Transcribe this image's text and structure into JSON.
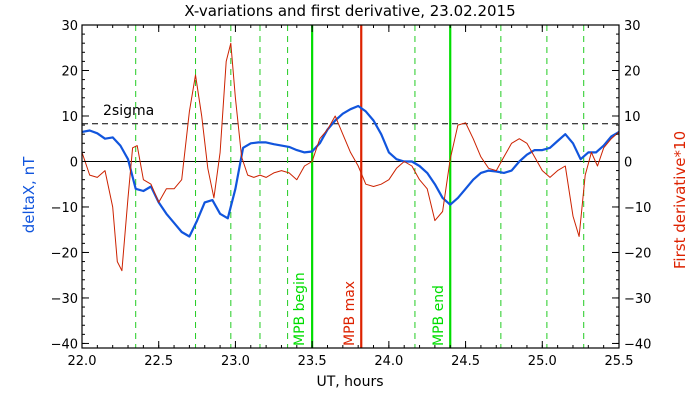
{
  "chart_data": {
    "type": "line",
    "title": "X-variations and first derivative, 23.02.2015",
    "xlabel": "UT, hours",
    "ylabel_left": "deltaX, nT",
    "ylabel_right": "First derivative*10",
    "xlim": [
      22.0,
      25.5
    ],
    "ylim": [
      -41,
      30
    ],
    "xticks": [
      22.0,
      22.5,
      23.0,
      23.5,
      24.0,
      24.5,
      25.0,
      25.5
    ],
    "xtick_labels": [
      "22.0",
      "22.5",
      "23.0",
      "23.5",
      "24.0",
      "24.5",
      "25.0",
      "25.5"
    ],
    "yticks": [
      30,
      20,
      10,
      0,
      -10,
      -20,
      -30,
      -40
    ],
    "ytick_labels": [
      "30",
      "20",
      "10",
      "0",
      "−10",
      "−20",
      "−30",
      "−40"
    ],
    "threshold": {
      "value": 8.3,
      "label": "2sigma"
    },
    "zero_line": 0,
    "green_dashed_lines": [
      22.35,
      22.74,
      22.97,
      23.16,
      23.34,
      24.17,
      24.73,
      25.03,
      25.27
    ],
    "vertical_markers": [
      {
        "x": 23.5,
        "label": "MPB begin",
        "color": "#00dd00"
      },
      {
        "x": 23.82,
        "label": "MPB max",
        "color": "#dd2200"
      },
      {
        "x": 24.4,
        "label": "MPB end",
        "color": "#00dd00"
      }
    ],
    "series": [
      {
        "axis": "left",
        "color": "#1155dd",
        "x": [
          22.0,
          22.05,
          22.1,
          22.15,
          22.2,
          22.25,
          22.3,
          22.35,
          22.4,
          22.45,
          22.5,
          22.55,
          22.6,
          22.65,
          22.7,
          22.75,
          22.8,
          22.85,
          22.9,
          22.95,
          23.0,
          23.05,
          23.1,
          23.15,
          23.2,
          23.25,
          23.3,
          23.35,
          23.4,
          23.45,
          23.5,
          23.55,
          23.6,
          23.65,
          23.7,
          23.75,
          23.8,
          23.85,
          23.9,
          23.95,
          24.0,
          24.05,
          24.1,
          24.15,
          24.2,
          24.25,
          24.3,
          24.35,
          24.4,
          24.45,
          24.5,
          24.55,
          24.6,
          24.65,
          24.7,
          24.75,
          24.8,
          24.85,
          24.9,
          24.95,
          25.0,
          25.05,
          25.1,
          25.15,
          25.2,
          25.25,
          25.3,
          25.35,
          25.4,
          25.45,
          25.5
        ],
        "values": [
          6.5,
          6.8,
          6.2,
          5.0,
          5.3,
          3.5,
          0.5,
          -6.0,
          -6.5,
          -5.5,
          -9.0,
          -11.5,
          -13.5,
          -15.5,
          -16.5,
          -13.0,
          -9.0,
          -8.5,
          -11.5,
          -12.5,
          -6.0,
          3.0,
          4.0,
          4.2,
          4.2,
          3.8,
          3.5,
          3.2,
          2.5,
          2.0,
          2.2,
          4.0,
          7.0,
          9.0,
          10.5,
          11.5,
          12.2,
          11.0,
          9.0,
          6.0,
          2.0,
          0.5,
          0.0,
          0.0,
          -1.0,
          -2.5,
          -5.0,
          -8.0,
          -9.5,
          -8.0,
          -6.0,
          -4.0,
          -2.5,
          -2.0,
          -2.2,
          -2.5,
          -2.0,
          0.0,
          1.5,
          2.5,
          2.5,
          3.0,
          4.5,
          6.0,
          4.0,
          0.5,
          2.0,
          2.0,
          3.5,
          5.5,
          6.5
        ]
      },
      {
        "axis": "right",
        "color": "#cc2200",
        "x": [
          22.0,
          22.05,
          22.1,
          22.15,
          22.2,
          22.23,
          22.26,
          22.3,
          22.33,
          22.36,
          22.4,
          22.45,
          22.5,
          22.55,
          22.6,
          22.65,
          22.7,
          22.74,
          22.78,
          22.82,
          22.86,
          22.9,
          22.94,
          22.97,
          23.0,
          23.04,
          23.08,
          23.12,
          23.16,
          23.2,
          23.25,
          23.3,
          23.35,
          23.4,
          23.45,
          23.5,
          23.55,
          23.6,
          23.65,
          23.7,
          23.75,
          23.8,
          23.85,
          23.9,
          23.95,
          24.0,
          24.05,
          24.1,
          24.15,
          24.2,
          24.25,
          24.3,
          24.35,
          24.4,
          24.45,
          24.5,
          24.55,
          24.6,
          24.65,
          24.7,
          24.75,
          24.8,
          24.85,
          24.9,
          24.95,
          25.0,
          25.05,
          25.1,
          25.15,
          25.2,
          25.24,
          25.28,
          25.32,
          25.36,
          25.4,
          25.45,
          25.5
        ],
        "values": [
          2.0,
          -3.0,
          -3.5,
          -2.0,
          -10.0,
          -22.0,
          -24.0,
          -8.0,
          3.0,
          3.5,
          -4.0,
          -5.0,
          -9.0,
          -6.0,
          -6.0,
          -4.0,
          11.0,
          19.0,
          10.0,
          -1.5,
          -8.0,
          2.0,
          22.0,
          26.0,
          14.0,
          1.0,
          -3.0,
          -3.5,
          -3.0,
          -3.5,
          -2.5,
          -2.0,
          -2.5,
          -4.0,
          -1.0,
          0.0,
          5.0,
          7.0,
          10.0,
          6.0,
          2.0,
          -1.0,
          -5.0,
          -5.5,
          -5.0,
          -4.0,
          -1.5,
          0.0,
          -1.0,
          -4.0,
          -6.0,
          -13.0,
          -11.0,
          0.5,
          8.0,
          8.5,
          5.0,
          1.0,
          -1.5,
          -2.0,
          1.0,
          4.0,
          5.0,
          4.0,
          1.0,
          -2.0,
          -3.5,
          -2.0,
          -1.0,
          -12.0,
          -16.5,
          -3.0,
          2.0,
          -1.0,
          3.0,
          5.0,
          6.5
        ]
      }
    ]
  }
}
